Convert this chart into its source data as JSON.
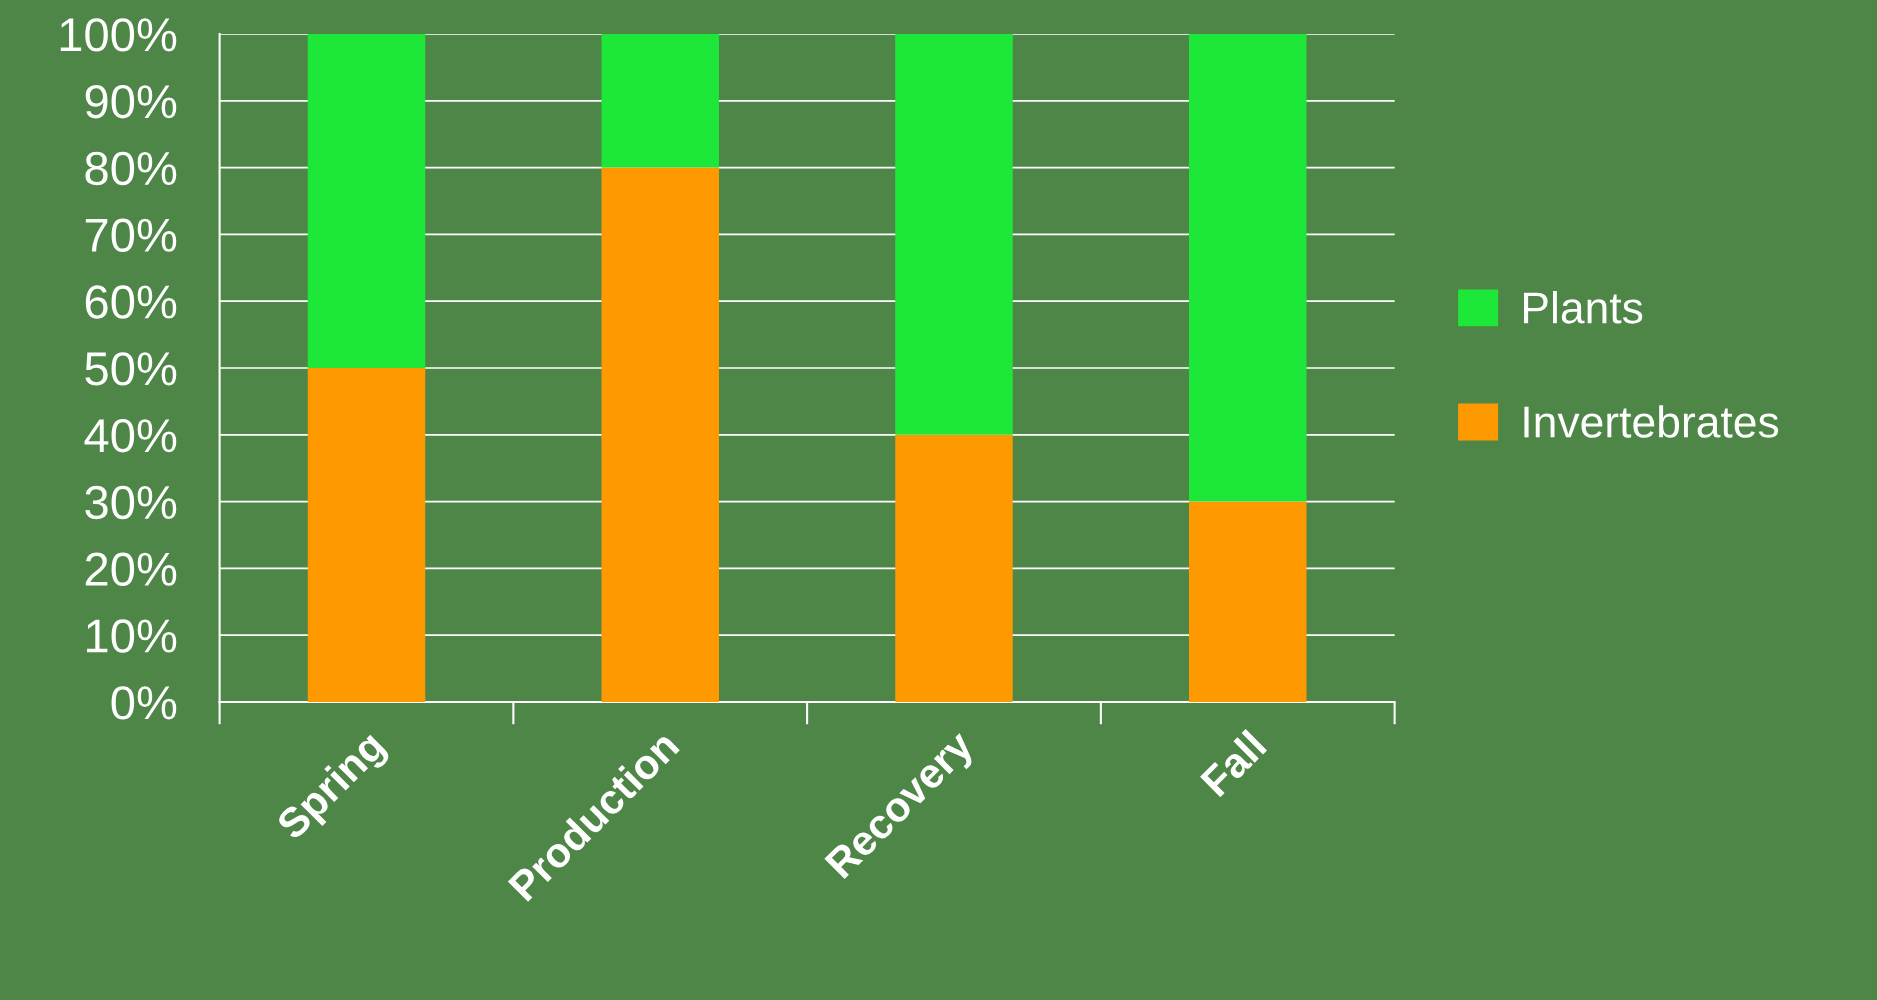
{
  "chart_data": {
    "type": "bar",
    "stacked": true,
    "categories": [
      "Spring",
      "Production",
      "Recovery",
      "Fall"
    ],
    "series": [
      {
        "name": "Invertebrates",
        "color": "#ff9900",
        "values": [
          50,
          80,
          40,
          30
        ]
      },
      {
        "name": "Plants",
        "color": "#1de83a",
        "values": [
          50,
          20,
          60,
          70
        ]
      }
    ],
    "ylim": [
      0,
      100
    ],
    "yticks": [
      {
        "value": 0,
        "label": "0%"
      },
      {
        "value": 10,
        "label": "10%"
      },
      {
        "value": 20,
        "label": "20%"
      },
      {
        "value": 30,
        "label": "30%"
      },
      {
        "value": 40,
        "label": "40%"
      },
      {
        "value": 50,
        "label": "50%"
      },
      {
        "value": 60,
        "label": "60%"
      },
      {
        "value": 70,
        "label": "70%"
      },
      {
        "value": 80,
        "label": "80%"
      },
      {
        "value": 90,
        "label": "90%"
      },
      {
        "value": 100,
        "label": "100%"
      }
    ],
    "grid": "y",
    "legend": "right"
  }
}
